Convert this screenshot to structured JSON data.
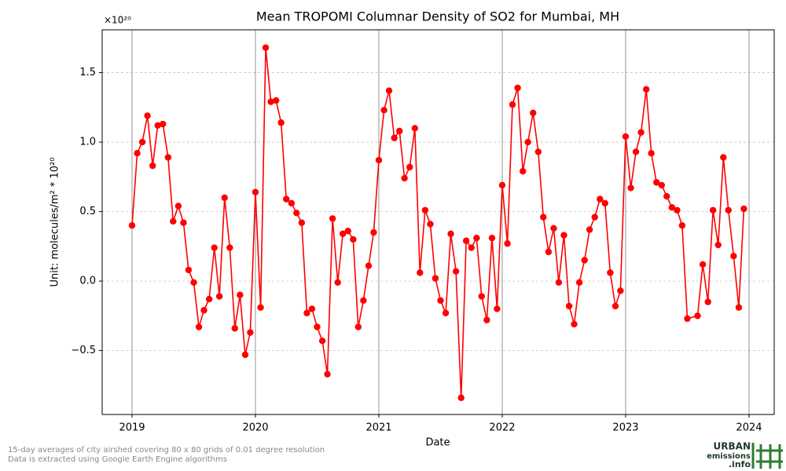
{
  "chart_data": {
    "type": "line",
    "title": "Mean TROPOMI Columnar Density of SO2 for Mumbai, MH",
    "x_label": "Date",
    "y_label": "Unit: molecules/m² * 10²⁰",
    "y_offset_label": "×10²⁰",
    "xlim": [
      2018.758,
      2024.204
    ],
    "ylim": [
      -0.96,
      1.808
    ],
    "xticks": [
      2019,
      2020,
      2021,
      2022,
      2023,
      2024
    ],
    "yticks": [
      {
        "value": -0.5,
        "label": "−0.5"
      },
      {
        "value": 0,
        "label": "0.0"
      },
      0.5,
      {
        "value": 1,
        "label": "1.0"
      },
      1.5
    ],
    "grid": true,
    "series": [
      {
        "name": "SO2",
        "color": "#ff0000",
        "x": [
          2019,
          2019.042,
          2019.083,
          2019.125,
          2019.167,
          2019.208,
          2019.25,
          2019.292,
          2019.333,
          2019.375,
          2019.417,
          2019.458,
          2019.5,
          2019.542,
          2019.583,
          2019.625,
          2019.667,
          2019.708,
          2019.75,
          2019.792,
          2019.833,
          2019.875,
          2019.917,
          2019.958,
          2020,
          2020.042,
          2020.083,
          2020.125,
          2020.167,
          2020.208,
          2020.25,
          2020.292,
          2020.333,
          2020.375,
          2020.417,
          2020.458,
          2020.5,
          2020.542,
          2020.583,
          2020.625,
          2020.667,
          2020.708,
          2020.75,
          2020.792,
          2020.833,
          2020.875,
          2020.917,
          2020.958,
          2021,
          2021.042,
          2021.083,
          2021.125,
          2021.167,
          2021.208,
          2021.25,
          2021.292,
          2021.333,
          2021.375,
          2021.417,
          2021.458,
          2021.5,
          2021.542,
          2021.583,
          2021.625,
          2021.667,
          2021.708,
          2021.75,
          2021.792,
          2021.833,
          2021.875,
          2021.917,
          2021.958,
          2022,
          2022.042,
          2022.083,
          2022.125,
          2022.167,
          2022.208,
          2022.25,
          2022.292,
          2022.333,
          2022.375,
          2022.417,
          2022.458,
          2022.5,
          2022.542,
          2022.583,
          2022.625,
          2022.667,
          2022.708,
          2022.75,
          2022.792,
          2022.833,
          2022.875,
          2022.917,
          2022.958,
          2023,
          2023.042,
          2023.083,
          2023.125,
          2023.167,
          2023.208,
          2023.25,
          2023.292,
          2023.333,
          2023.375,
          2023.417,
          2023.458,
          2023.5,
          2023.583,
          2023.625,
          2023.667,
          2023.708,
          2023.75,
          2023.792,
          2023.833,
          2023.875,
          2023.917,
          2023.958
        ],
        "values": [
          0.4,
          0.92,
          1.0,
          1.19,
          0.83,
          1.12,
          1.13,
          0.89,
          0.43,
          0.54,
          0.42,
          0.08,
          -0.01,
          -0.33,
          -0.21,
          -0.13,
          0.24,
          -0.11,
          0.6,
          0.24,
          -0.34,
          -0.1,
          -0.53,
          -0.37,
          0.64,
          -0.19,
          1.68,
          1.29,
          1.3,
          1.14,
          0.59,
          0.56,
          0.49,
          0.42,
          -0.23,
          -0.2,
          -0.33,
          -0.43,
          -0.67,
          0.45,
          -0.01,
          0.34,
          0.36,
          0.3,
          -0.33,
          -0.14,
          0.11,
          0.35,
          0.87,
          1.23,
          1.37,
          1.03,
          1.08,
          0.74,
          0.82,
          1.1,
          0.06,
          0.51,
          0.41,
          0.02,
          -0.14,
          -0.23,
          0.34,
          0.07,
          -0.84,
          0.29,
          0.24,
          0.31,
          -0.11,
          -0.28,
          0.31,
          -0.2,
          0.69,
          0.27,
          1.27,
          1.39,
          0.79,
          1.0,
          1.21,
          0.93,
          0.46,
          0.21,
          0.38,
          -0.01,
          0.33,
          -0.18,
          -0.31,
          -0.01,
          0.15,
          0.37,
          0.46,
          0.59,
          0.56,
          0.06,
          -0.18,
          -0.07,
          1.04,
          0.67,
          0.93,
          1.07,
          1.38,
          0.92,
          0.71,
          0.69,
          0.61,
          0.53,
          0.51,
          0.4,
          -0.27,
          -0.25,
          0.12,
          -0.15,
          0.51,
          0.26,
          0.89,
          0.51,
          0.18,
          -0.19,
          0.52
        ]
      }
    ]
  },
  "footer": {
    "notes": [
      "15-day averages of city airshed covering 80 x 80 grids of 0.01 degree resolution",
      "Data is extracted using Google Earth Engine algorithms"
    ],
    "logo": [
      "URBAN",
      "emissions",
      ".info"
    ]
  }
}
